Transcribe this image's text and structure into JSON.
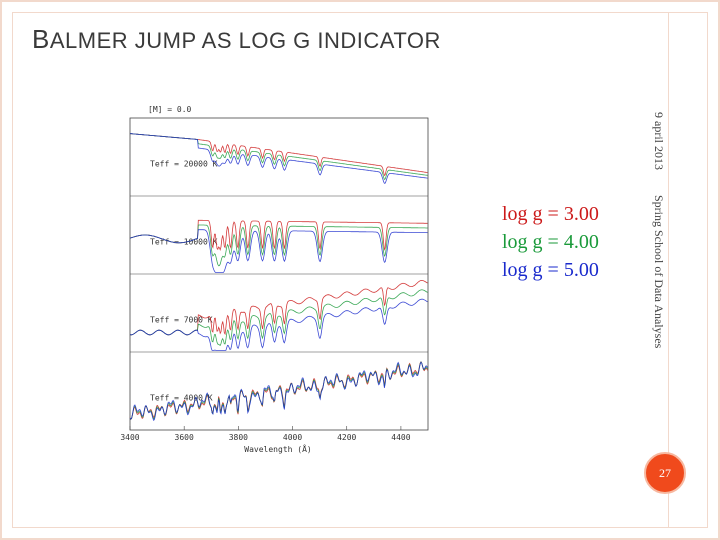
{
  "slide": {
    "title_first": "B",
    "title_rest": "ALMER JUMP AS LOG G INDICATOR",
    "date": "9 april 2013",
    "event": "Spring School of Data Analyses",
    "page_number": "27",
    "accent_color": "#f04a1c",
    "frame_color": "#f2d9cc"
  },
  "chart_data": {
    "type": "line",
    "xlabel": "Wavelength (Å)",
    "xlim": [
      3400,
      4500
    ],
    "x_ticks": [
      "3400",
      "3600",
      "3800",
      "4000",
      "4200",
      "4400"
    ],
    "metallicity_label": "[M] = 0.0",
    "panels": [
      {
        "label": "Teff = 20000 K"
      },
      {
        "label": "Teff = 10000 K"
      },
      {
        "label": "Teff = 7000 K"
      },
      {
        "label": "Teff = 4000 K"
      }
    ],
    "series": [
      {
        "name": "log g = 3.00",
        "color": "#cc1a1a"
      },
      {
        "name": "log g = 4.00",
        "color": "#1a9a3a"
      },
      {
        "name": "log g = 5.00",
        "color": "#1a2acc"
      }
    ]
  }
}
